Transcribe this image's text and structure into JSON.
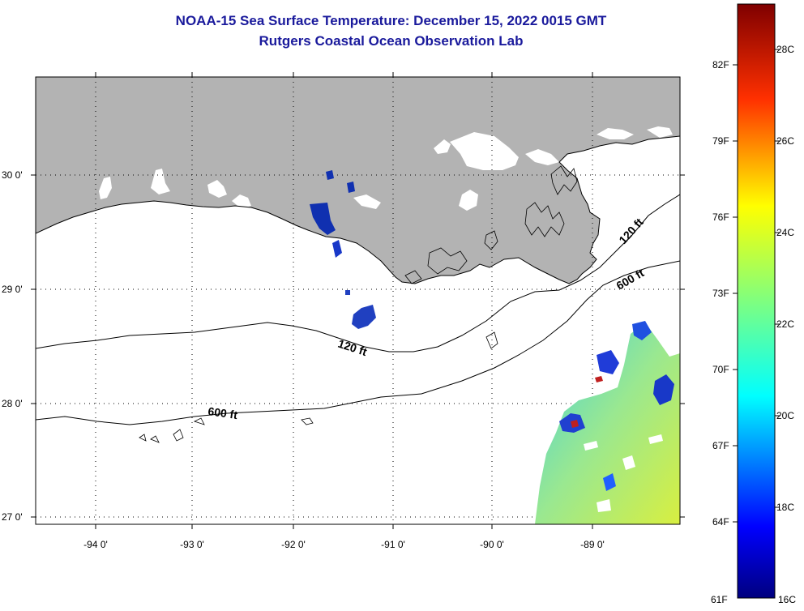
{
  "title": {
    "line1": "NOAA-15 Sea Surface Temperature:  December 15, 2022 0015 GMT",
    "line2": "Rutgers Coastal Ocean Observation Lab"
  },
  "map": {
    "lat_labels": [
      "30 0'",
      "29 0'",
      "28 0'",
      "27 0'"
    ],
    "lon_labels": [
      "-94 0'",
      "-93 0'",
      "-92 0'",
      "-91 0'",
      "-90 0'",
      "-89 0'"
    ],
    "contour_labels": {
      "c120_west": "120 ft",
      "c600_west": "600 ft",
      "c120_east": "120 ft",
      "c600_east": "600 ft"
    },
    "colors": {
      "land": "#b3b3b3",
      "water": "#ffffff",
      "contour": "#000000"
    }
  },
  "colorbar": {
    "f_labels": [
      "82F",
      "79F",
      "76F",
      "73F",
      "70F",
      "67F",
      "64F",
      "61F"
    ],
    "c_labels": [
      "28C",
      "26C",
      "24C",
      "22C",
      "20C",
      "18C",
      "16C"
    ],
    "min_c": 16,
    "max_c": 29.5,
    "colors": [
      "#00007f",
      "#0000ff",
      "#007fff",
      "#00ffff",
      "#7fff7f",
      "#ffff00",
      "#ff7f00",
      "#ff0000",
      "#7f0000"
    ]
  }
}
